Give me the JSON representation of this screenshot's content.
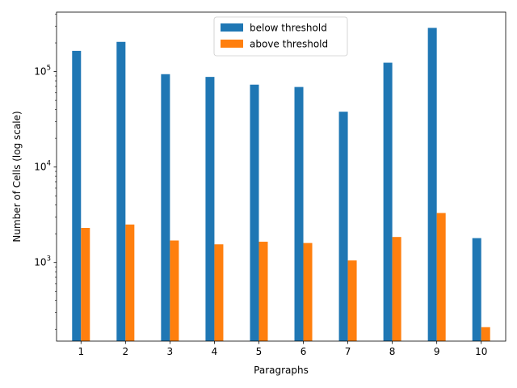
{
  "chart_data": {
    "type": "bar",
    "title": "",
    "xlabel": "Paragraphs",
    "ylabel": "Number of Cells (log scale)",
    "yscale": "log",
    "ylim": [
      150,
      420000
    ],
    "grid": false,
    "legend_position": "top-center",
    "categories": [
      "1",
      "2",
      "3",
      "4",
      "5",
      "6",
      "7",
      "8",
      "9",
      "10"
    ],
    "yticks": [
      {
        "value": 1000,
        "base": "10",
        "exp": "3"
      },
      {
        "value": 10000,
        "base": "10",
        "exp": "4"
      },
      {
        "value": 100000,
        "base": "10",
        "exp": "5"
      }
    ],
    "series": [
      {
        "name": "below threshold",
        "color": "#1f77b4",
        "values": [
          165000,
          205000,
          94000,
          88000,
          73000,
          69000,
          38000,
          124000,
          287000,
          1800
        ]
      },
      {
        "name": "above threshold",
        "color": "#ff7f0e",
        "values": [
          2300,
          2500,
          1700,
          1550,
          1650,
          1600,
          1050,
          1850,
          3300,
          210
        ]
      }
    ]
  }
}
